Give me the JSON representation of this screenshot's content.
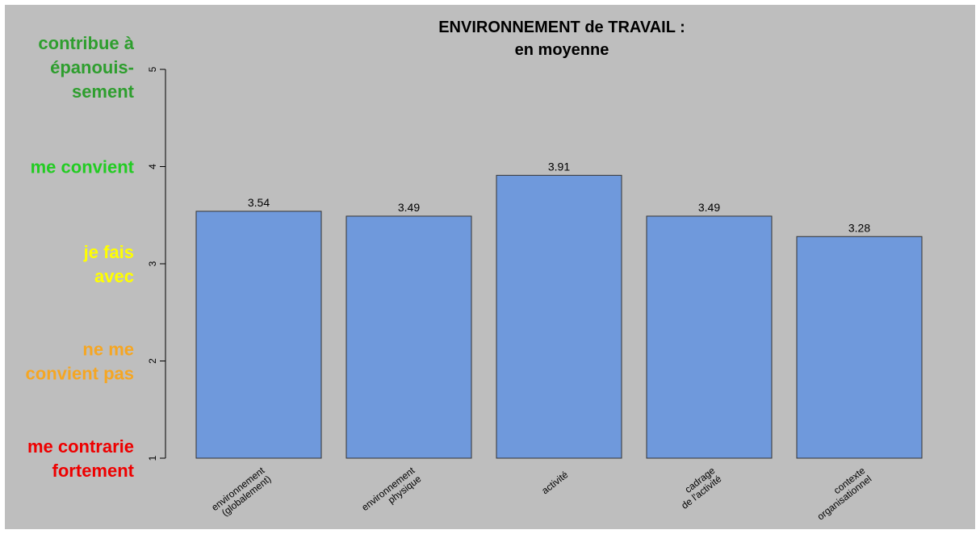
{
  "chart_data": {
    "type": "bar",
    "title": "ENVIRONNEMENT de TRAVAIL :",
    "subtitle": "en moyenne",
    "categories": [
      [
        "environnement",
        "(globalement)"
      ],
      [
        "environnement",
        "physique"
      ],
      [
        "activité"
      ],
      [
        "cadrage",
        "de l'activité"
      ],
      [
        "contexte",
        "organisationnel"
      ]
    ],
    "values": [
      3.54,
      3.49,
      3.91,
      3.49,
      3.28
    ],
    "value_labels": [
      "3.54",
      "3.49",
      "3.91",
      "3.49",
      "3.28"
    ],
    "ylim": [
      1,
      5
    ],
    "yticks": [
      "1",
      "2",
      "3",
      "4",
      "5"
    ],
    "bar_color": "#6f99dc",
    "background_color": "#bebebe",
    "grid": false,
    "level_labels": [
      {
        "value": 1,
        "lines": [
          "me contrarie",
          "fortement"
        ],
        "color": "#ee0000"
      },
      {
        "value": 2,
        "lines": [
          "ne me",
          "convient pas"
        ],
        "color": "#f5a623"
      },
      {
        "value": 3,
        "lines": [
          "je fais",
          "avec"
        ],
        "color": "#ffff00"
      },
      {
        "value": 4,
        "lines": [
          "me convient"
        ],
        "color": "#22cc22"
      },
      {
        "value": 5,
        "lines": [
          "contribue à",
          "épanouis-",
          "sement"
        ],
        "color": "#2e9e2e"
      }
    ]
  }
}
